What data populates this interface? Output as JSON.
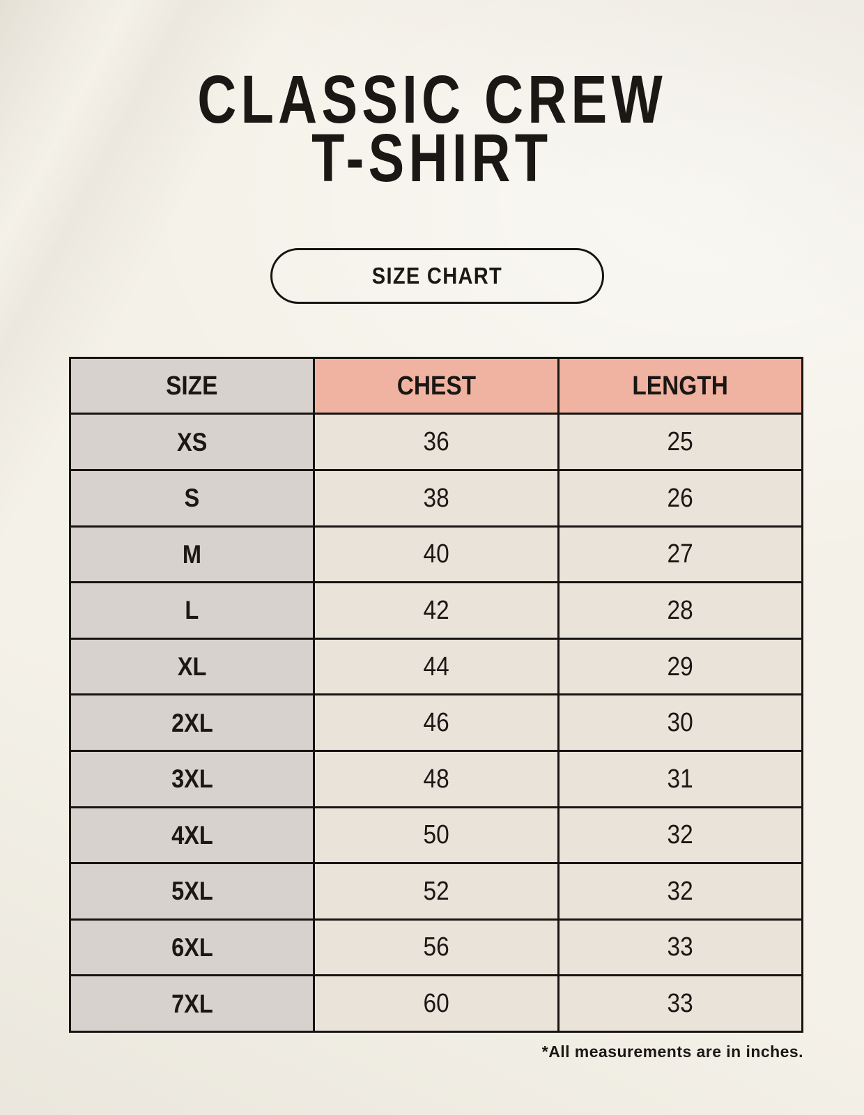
{
  "page": {
    "title_line1": "CLASSIC CREW",
    "title_line2": "T-SHIRT",
    "button_label": "SIZE CHART",
    "footnote": "*All measurements are in inches."
  },
  "chart_data": {
    "type": "table",
    "title": "CLASSIC CREW T-SHIRT",
    "subtitle": "SIZE CHART",
    "columns": [
      "SIZE",
      "CHEST",
      "LENGTH"
    ],
    "rows": [
      [
        "XS",
        "36",
        "25"
      ],
      [
        "S",
        "38",
        "26"
      ],
      [
        "M",
        "40",
        "27"
      ],
      [
        "L",
        "42",
        "28"
      ],
      [
        "XL",
        "44",
        "29"
      ],
      [
        "2XL",
        "46",
        "30"
      ],
      [
        "3XL",
        "48",
        "31"
      ],
      [
        "4XL",
        "50",
        "32"
      ],
      [
        "5XL",
        "52",
        "32"
      ],
      [
        "6XL",
        "56",
        "33"
      ],
      [
        "7XL",
        "60",
        "33"
      ]
    ],
    "units": "inches",
    "note": "*All measurements are in inches."
  },
  "colors": {
    "background": "#f4f1e8",
    "accent_salmon": "#f1b3a1",
    "size_column": "#d8d2ce",
    "cell_cream": "#eae3d9",
    "border_black": "#171411",
    "text": "#1a1714"
  }
}
